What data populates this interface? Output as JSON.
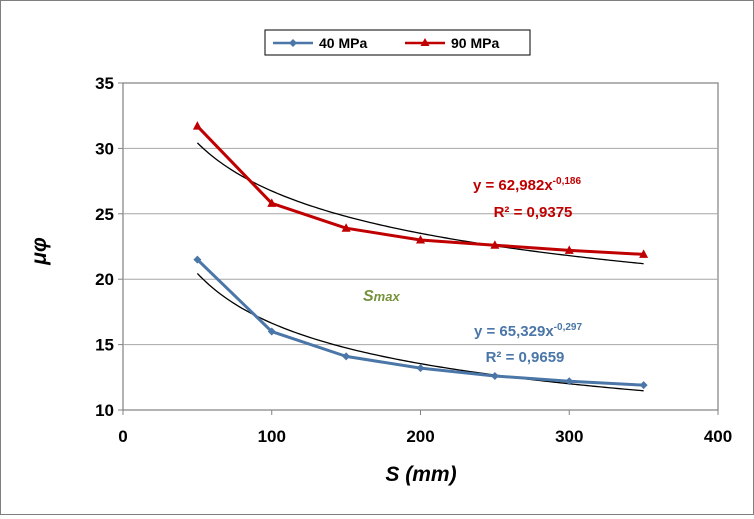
{
  "chart_data": {
    "type": "line",
    "xlabel": "S (mm)",
    "ylabel": "μφ",
    "xlim": [
      0,
      400
    ],
    "ylim": [
      10,
      35
    ],
    "x_ticks": [
      0,
      100,
      200,
      300,
      400
    ],
    "y_ticks": [
      10,
      15,
      20,
      25,
      30,
      35
    ],
    "grid": "horizontal",
    "legend_position": "top",
    "x": [
      50,
      100,
      150,
      200,
      250,
      300,
      350
    ],
    "series": [
      {
        "name": "40 MPa",
        "color": "#4a76a8",
        "marker": "diamond",
        "values": [
          21.5,
          16.0,
          14.1,
          13.2,
          12.6,
          12.2,
          11.9
        ],
        "trendline": {
          "a": 65.329,
          "b": -0.297
        },
        "equation": "y = 65,329x",
        "equation_exp": "-0,297",
        "r2": "R² = 0,9659"
      },
      {
        "name": "90 MPa",
        "color": "#c00000",
        "marker": "triangle",
        "values": [
          31.7,
          25.8,
          23.9,
          23.0,
          22.6,
          22.2,
          21.9
        ],
        "trendline": {
          "a": 62.982,
          "b": -0.186
        },
        "equation": "y = 62,982x",
        "equation_exp": "-0,186",
        "r2": "R² = 0,9375"
      }
    ],
    "annotation": {
      "text_main": "S",
      "text_sub": "max",
      "color": "#76923c"
    }
  }
}
